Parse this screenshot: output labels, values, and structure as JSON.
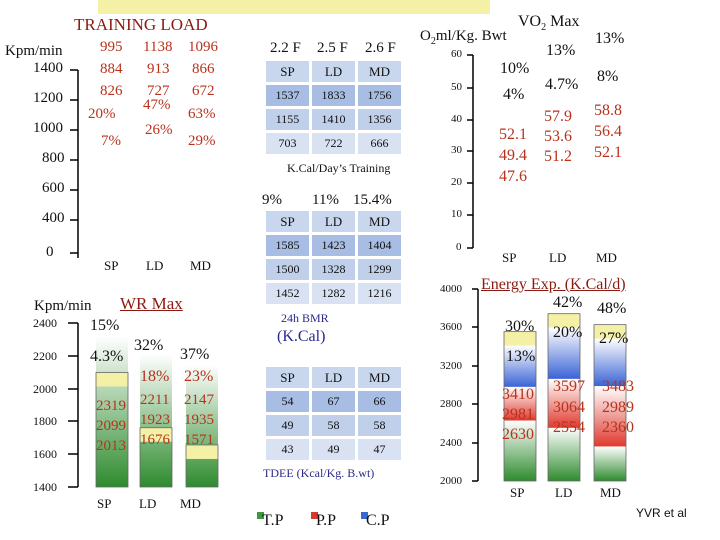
{
  "colors": {
    "tp": "#3c9a3c",
    "pp": "#d83a32",
    "cp": "#3a67d4",
    "pct": "#b8321c",
    "yellow": "#f4f1a6"
  },
  "training_load": {
    "title": "TRAINING LOAD",
    "unit": "Kpm/min",
    "yticks": [
      "1400",
      "1200",
      "1000",
      "800",
      "600",
      "400",
      "0"
    ],
    "categories": [
      "SP",
      "LD",
      "MD"
    ],
    "tp": [
      "995",
      "1138",
      "1096"
    ],
    "pp": [
      "884",
      "913",
      "866"
    ],
    "cp": [
      "826",
      "727",
      "672"
    ],
    "pct_top": [
      "20%",
      "47%",
      "63%"
    ],
    "pct_mid": [
      "7%",
      "26%",
      "29%"
    ]
  },
  "wr_max": {
    "title": "WR Max",
    "unit": "Kpm/min",
    "yticks": [
      "2400",
      "2200",
      "2000",
      "1800",
      "1600",
      "1400"
    ],
    "categories": [
      "SP",
      "LD",
      "MD"
    ],
    "pct_a": [
      "15%",
      "32%",
      "37%"
    ],
    "pct_b": [
      "4.3%",
      "18%",
      "23%"
    ],
    "tp": [
      "2319",
      "2211",
      "2147"
    ],
    "pp": [
      "2099",
      "1923",
      "1935"
    ],
    "cp": [
      "2013",
      "1676",
      "1571"
    ]
  },
  "tables": {
    "freq": [
      "2.2 F",
      "2.5 F",
      "2.6 F"
    ],
    "kcal_day": {
      "headers": [
        "SP",
        "LD",
        "MD"
      ],
      "rows": [
        [
          "1537",
          "1833",
          "1756"
        ],
        [
          "1155",
          "1410",
          "1356"
        ],
        [
          "703",
          "722",
          "666"
        ]
      ],
      "caption": "K.Cal/Day’s Training"
    },
    "bmr": {
      "pcts": [
        "9%",
        "11%",
        "15.4%"
      ],
      "headers": [
        "SP",
        "LD",
        "MD"
      ],
      "rows": [
        [
          "1585",
          "1423",
          "1404"
        ],
        [
          "1500",
          "1328",
          "1299"
        ],
        [
          "1452",
          "1282",
          "1216"
        ]
      ],
      "caption": "24h BMR",
      "unit": "(K.Cal)"
    },
    "tdee": {
      "headers": [
        "SP",
        "LD",
        "MD"
      ],
      "rows": [
        [
          "54",
          "67",
          "66"
        ],
        [
          "49",
          "58",
          "58"
        ],
        [
          "43",
          "49",
          "47"
        ]
      ],
      "caption": "TDEE (Kcal/Kg. B.wt)"
    }
  },
  "vo2": {
    "label_prefix": "O",
    "label_sub": "2",
    "label_suffix": "ml/Kg. Bwt",
    "title_prefix": "VO",
    "title_sub": "2",
    "title_suffix": " Max",
    "yticks": [
      "60",
      "50",
      "40",
      "30",
      "20",
      "10",
      "0"
    ],
    "categories": [
      "SP",
      "LD",
      "MD"
    ],
    "pct_a": [
      "10%",
      "13%",
      "13%"
    ],
    "pct_b": [
      "4%",
      "4.7%",
      "8%"
    ],
    "tp": [
      "47.6",
      "51.2",
      "52.1"
    ],
    "pp": [
      "49.4",
      "53.6",
      "56.4"
    ],
    "cp": [
      "52.1",
      "57.9",
      "58.8"
    ]
  },
  "energy": {
    "title": "Energy Exp. (K.Cal/d)",
    "yticks": [
      "4000",
      "3600",
      "3200",
      "2800",
      "2400",
      "2000"
    ],
    "categories": [
      "SP",
      "LD",
      "MD"
    ],
    "pct_a": [
      "30%",
      "42%",
      "48%"
    ],
    "pct_b": [
      "13%",
      "20%",
      "27%"
    ],
    "tp": [
      "2630",
      "2554",
      "2360"
    ],
    "pp": [
      "2981",
      "3064",
      "2989"
    ],
    "cp": [
      "3410",
      "3597",
      "3483"
    ]
  },
  "legend": [
    "T.P",
    "P.P",
    "C.P"
  ],
  "credit": "YVR et al",
  "chart_data": [
    {
      "type": "bar",
      "title": "TRAINING LOAD",
      "ylabel": "Kpm/min",
      "categories": [
        "SP",
        "LD",
        "MD"
      ],
      "series": [
        {
          "name": "T.P",
          "values": [
            995,
            1138,
            1096
          ]
        },
        {
          "name": "P.P",
          "values": [
            884,
            913,
            866
          ]
        },
        {
          "name": "C.P",
          "values": [
            826,
            727,
            672
          ]
        }
      ]
    },
    {
      "type": "bar",
      "title": "WR Max",
      "ylabel": "Kpm/min",
      "ylim": [
        1400,
        2400
      ],
      "categories": [
        "SP",
        "LD",
        "MD"
      ],
      "series": [
        {
          "name": "T.P",
          "values": [
            2319,
            2211,
            2147
          ]
        },
        {
          "name": "P.P",
          "values": [
            2099,
            1923,
            1935
          ]
        },
        {
          "name": "C.P",
          "values": [
            2013,
            1676,
            1571
          ]
        }
      ]
    },
    {
      "type": "bar",
      "title": "VO2 Max",
      "ylabel": "O2ml/Kg. Bwt",
      "ylim": [
        0,
        60
      ],
      "categories": [
        "SP",
        "LD",
        "MD"
      ],
      "series": [
        {
          "name": "T.P",
          "values": [
            47.6,
            51.2,
            52.1
          ]
        },
        {
          "name": "P.P",
          "values": [
            49.4,
            53.6,
            56.4
          ]
        },
        {
          "name": "C.P",
          "values": [
            52.1,
            57.9,
            58.8
          ]
        }
      ]
    },
    {
      "type": "bar",
      "title": "Energy Exp. (K.Cal/d)",
      "ylim": [
        2000,
        4000
      ],
      "categories": [
        "SP",
        "LD",
        "MD"
      ],
      "series": [
        {
          "name": "T.P",
          "values": [
            2630,
            2554,
            2360
          ]
        },
        {
          "name": "P.P",
          "values": [
            2981,
            3064,
            2989
          ]
        },
        {
          "name": "C.P",
          "values": [
            3410,
            3597,
            3483
          ]
        }
      ]
    }
  ]
}
